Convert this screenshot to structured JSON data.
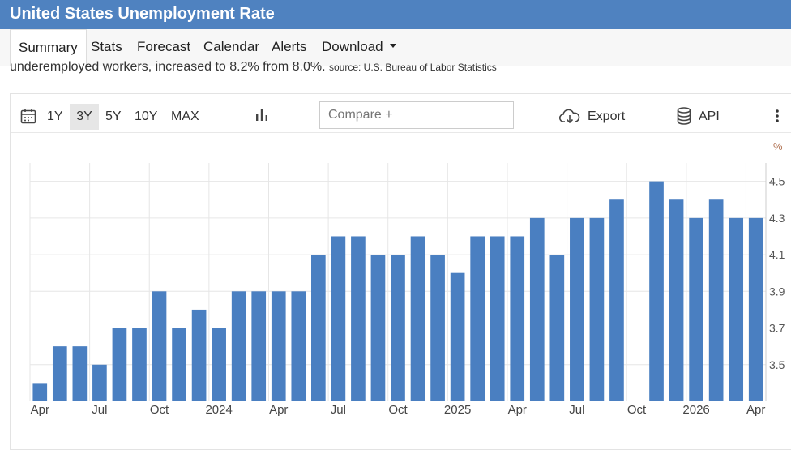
{
  "page": {
    "title": "United States Unemployment Rate",
    "nav": [
      {
        "label": "Summary"
      },
      {
        "label": "Stats"
      },
      {
        "label": "Forecast"
      },
      {
        "label": "Calendar"
      },
      {
        "label": "Alerts"
      },
      {
        "label": "Download"
      }
    ],
    "description": "underemployed workers, increased to 8.2% from 8.0%.",
    "source": "source: U.S. Bureau of Labor Statistics",
    "toolbar": {
      "ranges": [
        "1Y",
        "3Y",
        "5Y",
        "10Y",
        "MAX"
      ],
      "active_range": "3Y",
      "compare_placeholder": "Compare +",
      "export_label": "Export",
      "api_label": "API"
    }
  },
  "colors": {
    "header": "#4f82c0",
    "bar": "#4a7fc1",
    "grid": "#e6e6e6"
  },
  "chart_data": {
    "type": "bar",
    "unit": "%",
    "ylim": [
      3.3,
      4.6
    ],
    "yticks": [
      3.5,
      3.7,
      3.9,
      4.1,
      4.3,
      4.5
    ],
    "y_axis_position": "right",
    "grid": true,
    "categories": [
      "2023-04",
      "2023-05",
      "2023-06",
      "2023-07",
      "2023-08",
      "2023-09",
      "2023-10",
      "2023-11",
      "2023-12",
      "2024-01",
      "2024-02",
      "2024-03",
      "2024-04",
      "2024-05",
      "2024-06",
      "2024-07",
      "2024-08",
      "2024-09",
      "2024-10",
      "2024-11",
      "2024-12",
      "2025-01",
      "2025-02",
      "2025-03",
      "2025-04",
      "2025-05",
      "2025-06",
      "2025-07",
      "2025-08",
      "2025-09",
      "2025-10",
      "2025-11",
      "2025-12",
      "2026-01",
      "2026-02",
      "2026-03",
      "2026-04"
    ],
    "values": [
      3.4,
      3.6,
      3.6,
      3.5,
      3.7,
      3.7,
      3.9,
      3.7,
      3.8,
      3.7,
      3.9,
      3.9,
      3.9,
      3.9,
      4.1,
      4.2,
      4.2,
      4.1,
      4.1,
      4.2,
      4.1,
      4.0,
      4.2,
      4.2,
      4.2,
      4.3,
      4.1,
      4.3,
      4.3,
      4.4,
      null,
      4.5,
      4.4,
      4.3,
      4.4,
      4.3,
      4.3
    ],
    "xtick_labels": [
      {
        "index": 0,
        "label": "Apr"
      },
      {
        "index": 3,
        "label": "Jul"
      },
      {
        "index": 6,
        "label": "Oct"
      },
      {
        "index": 9,
        "label": "2024"
      },
      {
        "index": 12,
        "label": "Apr"
      },
      {
        "index": 15,
        "label": "Jul"
      },
      {
        "index": 18,
        "label": "Oct"
      },
      {
        "index": 21,
        "label": "2025"
      },
      {
        "index": 24,
        "label": "Apr"
      },
      {
        "index": 27,
        "label": "Jul"
      },
      {
        "index": 30,
        "label": "Oct"
      },
      {
        "index": 33,
        "label": "2026"
      },
      {
        "index": 36,
        "label": "Apr"
      }
    ]
  }
}
